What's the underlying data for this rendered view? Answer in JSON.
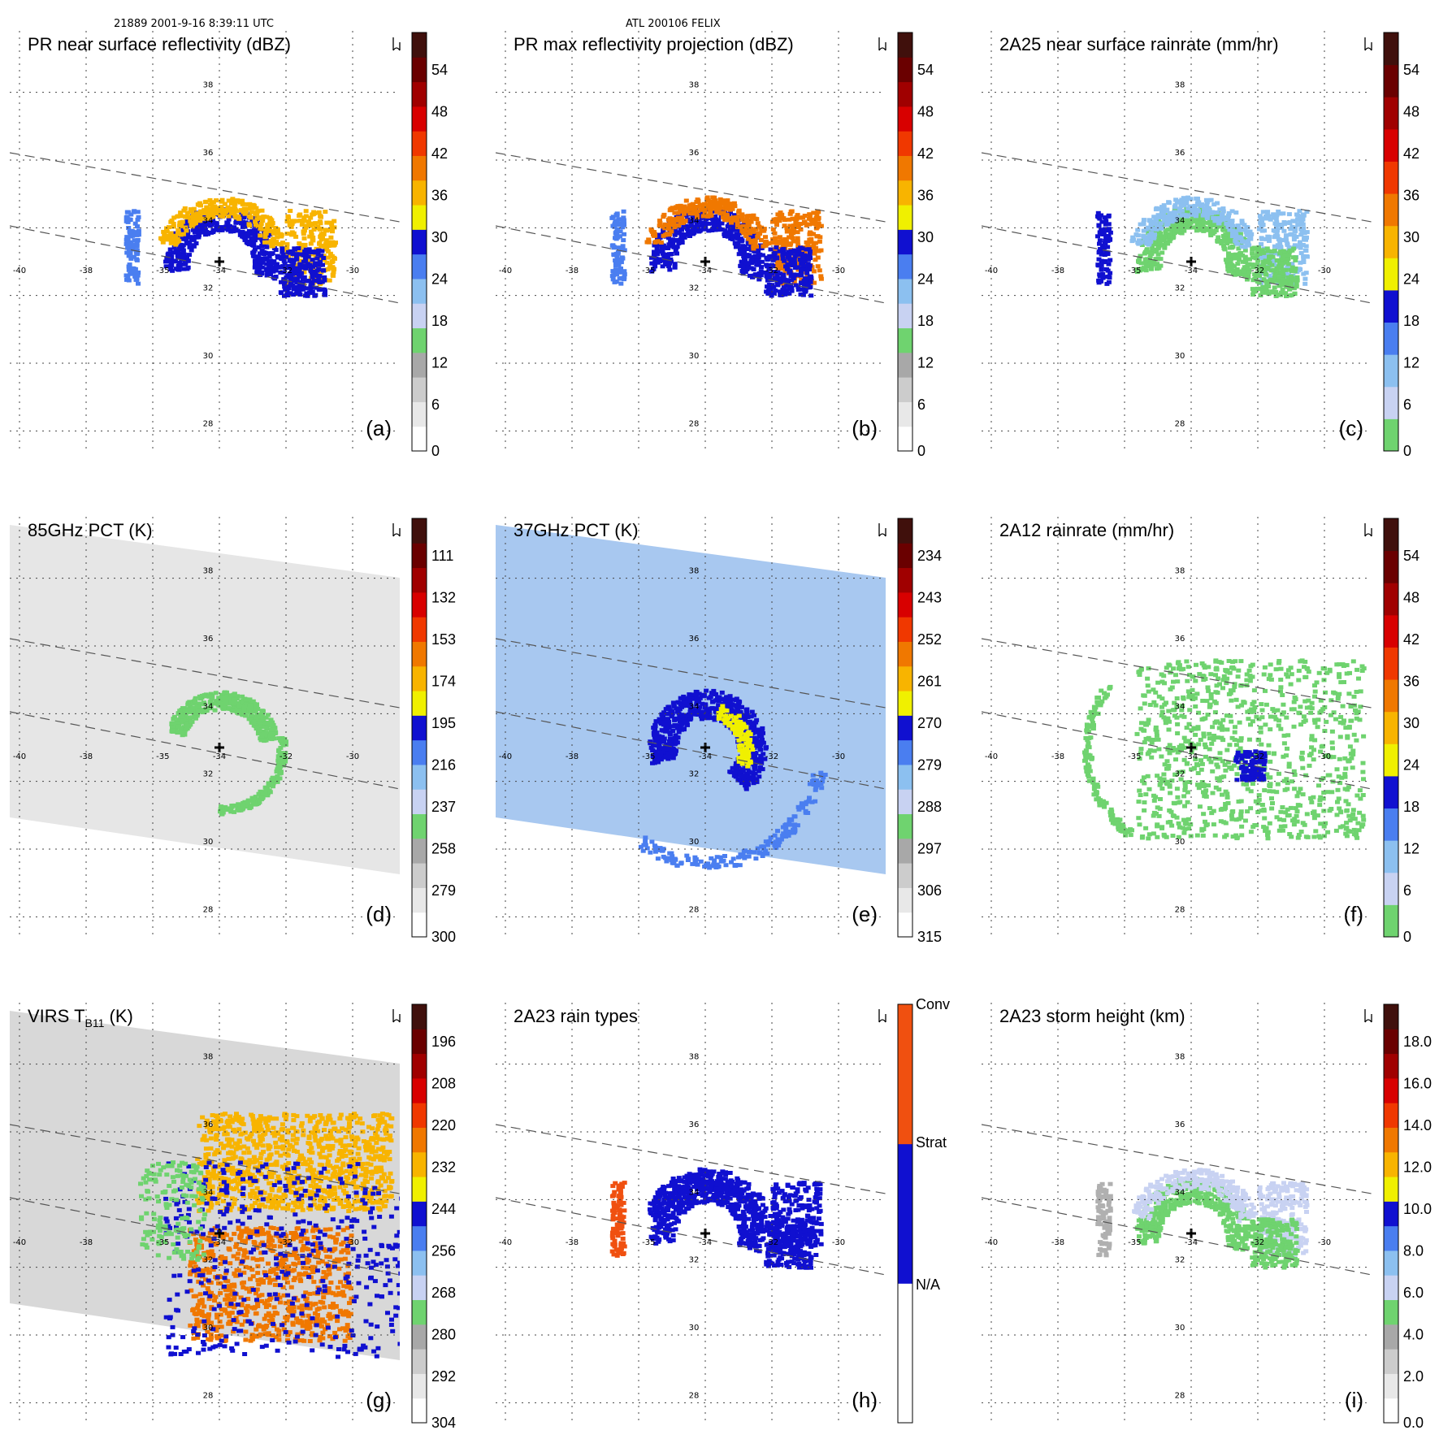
{
  "header": {
    "left": "21889 2001-9-16 8:39:11 UTC",
    "center": "ATL 200106 FELIX"
  },
  "north_arrow_icon": "north-arrow-icon",
  "grid": {
    "lon_ticks": [
      "-40",
      "-38",
      "-35",
      "-34",
      "-32",
      "-30"
    ],
    "lat_ticks": [
      "38",
      "36",
      "34",
      "32",
      "30",
      "28"
    ]
  },
  "chart_data": [
    {
      "type": "heatmap",
      "id": "a",
      "title": "PR near surface reflectivity (dBZ)",
      "label": "(a)",
      "colorbar": [
        "54",
        "48",
        "42",
        "36",
        "30",
        "24",
        "18",
        "12",
        "6",
        "0"
      ],
      "colorbar_colors": [
        "#ffffff",
        "#e8e8e8",
        "#cccccc",
        "#a8a8a8",
        "#6fd36f",
        "#c8d2f2",
        "#8cc0f0",
        "#4a7ef0",
        "#1010d0",
        "#f0f000",
        "#f8b400",
        "#f07800",
        "#f03800",
        "#d80000",
        "#a00000",
        "#6a0000",
        "#40100c"
      ],
      "extent": {
        "lon": [
          -40,
          -30
        ],
        "lat": [
          27,
          39
        ]
      }
    },
    {
      "type": "heatmap",
      "id": "b",
      "title": "PR max reflectivity projection (dBZ)",
      "label": "(b)",
      "colorbar": [
        "54",
        "48",
        "42",
        "36",
        "30",
        "24",
        "18",
        "12",
        "6",
        "0"
      ],
      "colorbar_colors": [
        "#ffffff",
        "#e8e8e8",
        "#cccccc",
        "#a8a8a8",
        "#6fd36f",
        "#c8d2f2",
        "#8cc0f0",
        "#4a7ef0",
        "#1010d0",
        "#f0f000",
        "#f8b400",
        "#f07800",
        "#f03800",
        "#d80000",
        "#a00000",
        "#6a0000",
        "#40100c"
      ]
    },
    {
      "type": "heatmap",
      "id": "c",
      "title": "2A25 near surface rainrate (mm/hr)",
      "label": "(c)",
      "colorbar": [
        "54",
        "48",
        "42",
        "36",
        "30",
        "24",
        "18",
        "12",
        "6",
        "0"
      ],
      "colorbar_colors": [
        "#6fd36f",
        "#c8d2f2",
        "#8cc0f0",
        "#4a7ef0",
        "#1010d0",
        "#f0f000",
        "#f8b400",
        "#f07800",
        "#f03800",
        "#d80000",
        "#a00000",
        "#6a0000",
        "#40100c"
      ]
    },
    {
      "type": "heatmap",
      "id": "d",
      "title": "85GHz PCT (K)",
      "label": "(d)",
      "colorbar": [
        "111",
        "132",
        "153",
        "174",
        "195",
        "216",
        "237",
        "258",
        "279",
        "300"
      ],
      "colorbar_colors": [
        "#ffffff",
        "#e8e8e8",
        "#cccccc",
        "#a8a8a8",
        "#6fd36f",
        "#c8d2f2",
        "#8cc0f0",
        "#4a7ef0",
        "#1010d0",
        "#f0f000",
        "#f8b400",
        "#f07800",
        "#f03800",
        "#d80000",
        "#a00000",
        "#6a0000",
        "#40100c"
      ]
    },
    {
      "type": "heatmap",
      "id": "e",
      "title": "37GHz PCT (K)",
      "label": "(e)",
      "colorbar": [
        "234",
        "243",
        "252",
        "261",
        "270",
        "279",
        "288",
        "297",
        "306",
        "315"
      ],
      "colorbar_colors": [
        "#ffffff",
        "#e8e8e8",
        "#cccccc",
        "#a8a8a8",
        "#6fd36f",
        "#c8d2f2",
        "#8cc0f0",
        "#4a7ef0",
        "#1010d0",
        "#f0f000",
        "#f8b400",
        "#f07800",
        "#f03800",
        "#d80000",
        "#a00000",
        "#6a0000",
        "#40100c"
      ]
    },
    {
      "type": "heatmap",
      "id": "f",
      "title": "2A12 rainrate (mm/hr)",
      "label": "(f)",
      "colorbar": [
        "54",
        "48",
        "42",
        "36",
        "30",
        "24",
        "18",
        "12",
        "6",
        "0"
      ],
      "colorbar_colors": [
        "#6fd36f",
        "#c8d2f2",
        "#8cc0f0",
        "#4a7ef0",
        "#1010d0",
        "#f0f000",
        "#f8b400",
        "#f07800",
        "#f03800",
        "#d80000",
        "#a00000",
        "#6a0000",
        "#40100c"
      ]
    },
    {
      "type": "heatmap",
      "id": "g",
      "title_main": "VIRS T",
      "title_sub": "B11",
      "title_unit": " (K)",
      "label": "(g)",
      "colorbar": [
        "196",
        "208",
        "220",
        "232",
        "244",
        "256",
        "268",
        "280",
        "292",
        "304"
      ],
      "colorbar_colors": [
        "#ffffff",
        "#e8e8e8",
        "#cccccc",
        "#a8a8a8",
        "#6fd36f",
        "#c8d2f2",
        "#8cc0f0",
        "#4a7ef0",
        "#1010d0",
        "#f0f000",
        "#f8b400",
        "#f07800",
        "#f03800",
        "#d80000",
        "#a00000",
        "#6a0000",
        "#40100c"
      ]
    },
    {
      "type": "heatmap",
      "id": "h",
      "title": "2A23 rain types",
      "label": "(h)",
      "colorbar": [
        "Conv",
        "Strat",
        "N/A"
      ],
      "colorbar_colors": [
        "#ffffff",
        "#1010d0",
        "#f05010"
      ]
    },
    {
      "type": "heatmap",
      "id": "i",
      "title": "2A23 storm height (km)",
      "label": "(i)",
      "colorbar": [
        "18.0",
        "16.0",
        "14.0",
        "12.0",
        "10.0",
        "8.0",
        "6.0",
        "4.0",
        "2.0",
        "0.0"
      ],
      "colorbar_colors": [
        "#ffffff",
        "#e8e8e8",
        "#cccccc",
        "#a8a8a8",
        "#6fd36f",
        "#c8d2f2",
        "#8cc0f0",
        "#4a7ef0",
        "#1010d0",
        "#f0f000",
        "#f8b400",
        "#f07800",
        "#f03800",
        "#d80000",
        "#a00000",
        "#6a0000",
        "#40100c"
      ]
    }
  ]
}
